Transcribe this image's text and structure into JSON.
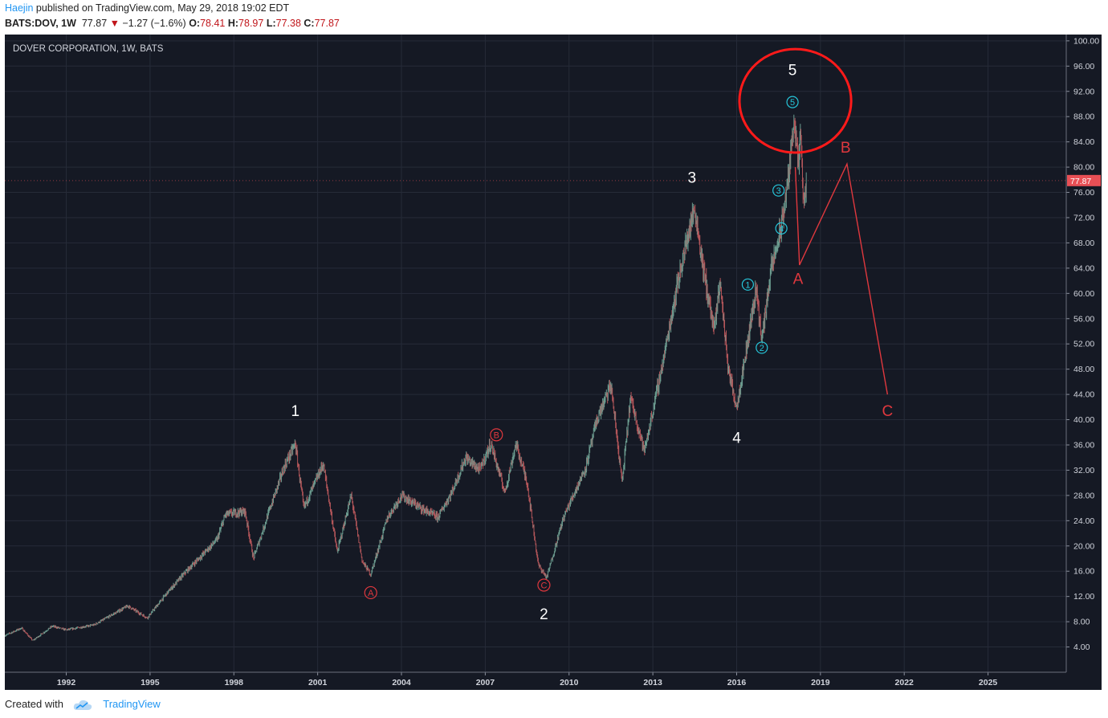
{
  "header": {
    "author": "Haejin",
    "published_text": "published on TradingView.com, May 29, 2018 19:02 EDT",
    "symbol_line": "BATS:DOV, 1W",
    "last": "77.87",
    "change": "−1.27 (−1.6%)",
    "o_label": "O:",
    "o_value": "78.41",
    "h_label": "H:",
    "h_value": "78.97",
    "l_label": "L:",
    "l_value": "77.38",
    "c_label": "C:",
    "c_value": "77.87"
  },
  "footer": {
    "created_with": "Created with",
    "brand": "TradingView"
  },
  "colors": {
    "background": "#151924",
    "grid": "#262b38",
    "up": "#6b9b8f",
    "down": "#b4565a",
    "wave_white": "#ffffff",
    "wave_red": "#e0383e",
    "wave_cyan": "#26c6da",
    "price_tag": "#e84f55"
  },
  "chart_data": {
    "type": "candlestick",
    "title": "DOVER CORPORATION, 1W, BATS",
    "timeframe": "1W",
    "xlim": [
      1989.8,
      2027.8
    ],
    "ylim": [
      0,
      101
    ],
    "y_ticks": [
      "4.00",
      "8.00",
      "12.00",
      "16.00",
      "20.00",
      "24.00",
      "28.00",
      "32.00",
      "36.00",
      "40.00",
      "44.00",
      "48.00",
      "52.00",
      "56.00",
      "60.00",
      "64.00",
      "68.00",
      "72.00",
      "76.00",
      "80.00",
      "84.00",
      "88.00",
      "92.00",
      "96.00",
      "100.00"
    ],
    "x_ticks": [
      "1992",
      "1995",
      "1998",
      "2001",
      "2004",
      "2007",
      "2010",
      "2013",
      "2016",
      "2019",
      "2022",
      "2025"
    ],
    "last_price": "77.87",
    "price_path": [
      [
        1989.8,
        5.8
      ],
      [
        1990.4,
        7.0
      ],
      [
        1990.8,
        5.0
      ],
      [
        1991.5,
        7.3
      ],
      [
        1992.0,
        6.7
      ],
      [
        1993.0,
        7.5
      ],
      [
        1994.2,
        10.5
      ],
      [
        1994.9,
        8.6
      ],
      [
        1995.6,
        12.5
      ],
      [
        1996.3,
        16.0
      ],
      [
        1997.4,
        21.0
      ],
      [
        1997.7,
        25.0
      ],
      [
        1998.4,
        25.5
      ],
      [
        1998.7,
        18.0
      ],
      [
        1999.3,
        26.0
      ],
      [
        1999.8,
        32.5
      ],
      [
        2000.2,
        36.2
      ],
      [
        2000.5,
        26.0
      ],
      [
        2001.2,
        33.0
      ],
      [
        2001.7,
        19.0
      ],
      [
        2002.2,
        28.0
      ],
      [
        2002.6,
        17.5
      ],
      [
        2002.9,
        15.5
      ],
      [
        2003.5,
        24.5
      ],
      [
        2004.0,
        28.0
      ],
      [
        2004.7,
        26.0
      ],
      [
        2005.3,
        24.5
      ],
      [
        2005.8,
        28.5
      ],
      [
        2006.3,
        34.0
      ],
      [
        2006.8,
        32.0
      ],
      [
        2007.2,
        36.2
      ],
      [
        2007.7,
        28.5
      ],
      [
        2008.1,
        36.2
      ],
      [
        2008.5,
        30.0
      ],
      [
        2008.9,
        17.0
      ],
      [
        2009.2,
        15.0
      ],
      [
        2009.8,
        24.5
      ],
      [
        2010.6,
        32.5
      ],
      [
        2011.0,
        40.0
      ],
      [
        2011.5,
        45.5
      ],
      [
        2011.9,
        30.0
      ],
      [
        2012.2,
        43.5
      ],
      [
        2012.7,
        35.0
      ],
      [
        2013.4,
        50.0
      ],
      [
        2013.9,
        62.0
      ],
      [
        2014.3,
        70.0
      ],
      [
        2014.5,
        73.5
      ],
      [
        2014.8,
        64.0
      ],
      [
        2015.2,
        54.0
      ],
      [
        2015.4,
        62.0
      ],
      [
        2015.7,
        48.0
      ],
      [
        2016.0,
        42.0
      ],
      [
        2016.4,
        52.5
      ],
      [
        2016.7,
        61.0
      ],
      [
        2016.9,
        52.5
      ],
      [
        2017.2,
        63.0
      ],
      [
        2017.6,
        70.5
      ],
      [
        2017.9,
        80.0
      ],
      [
        2018.05,
        88.3
      ],
      [
        2018.2,
        80.0
      ],
      [
        2018.3,
        85.0
      ],
      [
        2018.4,
        73.0
      ],
      [
        2018.5,
        78.0
      ]
    ],
    "wave_labels_primary": [
      {
        "label": "1",
        "x": 2000.2,
        "y": 40.6
      },
      {
        "label": "2",
        "x": 2009.1,
        "y": 8.4
      },
      {
        "label": "3",
        "x": 2014.4,
        "y": 77.5
      },
      {
        "label": "4",
        "x": 2016.0,
        "y": 36.3
      },
      {
        "label": "5",
        "x": 2018.0,
        "y": 94.6
      }
    ],
    "wave_labels_minor": [
      {
        "label": "1",
        "x": 2016.4,
        "y": 61.4
      },
      {
        "label": "2",
        "x": 2016.9,
        "y": 51.4
      },
      {
        "label": "3",
        "x": 2017.5,
        "y": 76.3
      },
      {
        "label": "4",
        "x": 2017.6,
        "y": 70.3
      },
      {
        "label": "5",
        "x": 2018.0,
        "y": 90.3
      }
    ],
    "correction_labels": [
      {
        "label": "A",
        "x": 2002.9,
        "y": 12.6
      },
      {
        "label": "B",
        "x": 2007.4,
        "y": 37.6
      },
      {
        "label": "C",
        "x": 2009.1,
        "y": 13.8
      }
    ],
    "projection": {
      "points": [
        [
          2018.1,
          80.0
        ],
        [
          2018.25,
          64.5
        ],
        [
          2019.95,
          80.5
        ],
        [
          2021.4,
          44.0
        ]
      ],
      "labels": [
        {
          "label": "A",
          "x": 2018.2,
          "y": 61.5
        },
        {
          "label": "B",
          "x": 2019.9,
          "y": 82.3
        },
        {
          "label": "C",
          "x": 2021.4,
          "y": 40.6
        }
      ]
    },
    "top_circle": {
      "cx": 2018.1,
      "cy": 90.5,
      "r_years": 2.0,
      "r_price": 8.2
    }
  }
}
